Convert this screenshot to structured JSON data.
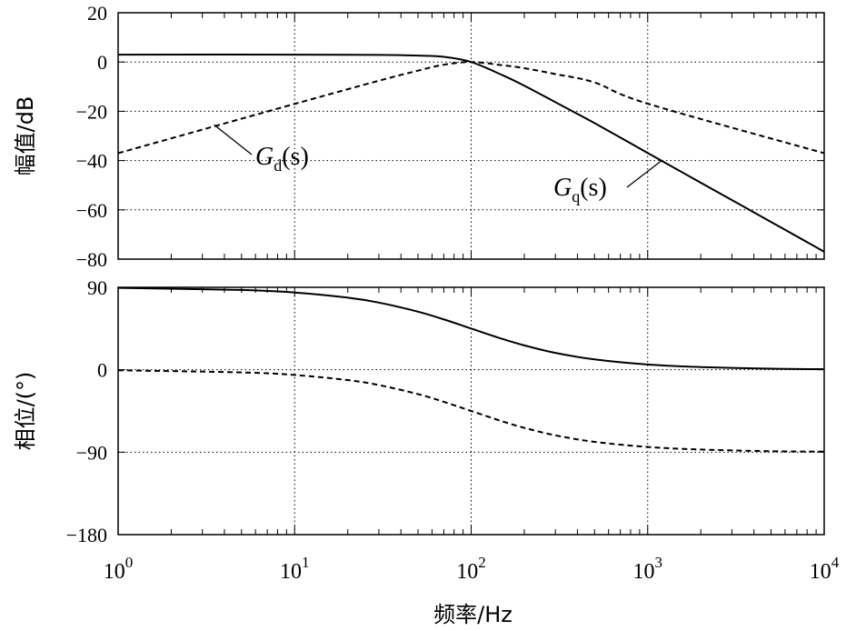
{
  "chart_data": [
    {
      "type": "line",
      "panel": "magnitude",
      "ylabel": "幅值/dB",
      "xscale": "log",
      "xlim": [
        1,
        10000
      ],
      "ylim": [
        -80,
        20
      ],
      "yticks": [
        20,
        0,
        -20,
        -40,
        -60,
        -80
      ],
      "ytick_labels": [
        "20",
        "0",
        "−20",
        "−40",
        "−60",
        "−80"
      ],
      "grid": true,
      "series": [
        {
          "name": "G_q(s)",
          "style": "solid",
          "x": [
            1,
            10,
            30,
            50,
            70,
            100,
            150,
            200,
            300,
            500,
            1000,
            2000,
            5000,
            10000
          ],
          "y": [
            3,
            3,
            2.9,
            2.6,
            2.1,
            0,
            -5.3,
            -9.6,
            -16.3,
            -24.8,
            -36.9,
            -49,
            -64.9,
            -77
          ]
        },
        {
          "name": "G_d(s)",
          "style": "dashed",
          "x": [
            1,
            10,
            30,
            50,
            70,
            100,
            150,
            200,
            300,
            500,
            1000,
            10000
          ],
          "y": [
            -37,
            -17,
            -7.6,
            -3.5,
            -1.1,
            0,
            -1.3,
            -2.5,
            -4.9,
            -8.3,
            -16.9,
            -37
          ]
        }
      ],
      "annotations": [
        {
          "main": "G",
          "sub": "d",
          "rest": "(s)",
          "target_x": 3.5,
          "target_y": -25.5
        },
        {
          "main": "G",
          "sub": "q",
          "rest": "(s)",
          "target_x": 1200,
          "target_y": -40
        }
      ]
    },
    {
      "type": "line",
      "panel": "phase",
      "xlabel": "频率/Hz",
      "ylabel": "相位/(°)",
      "xscale": "log",
      "xlim": [
        1,
        10000
      ],
      "ylim": [
        -180,
        90
      ],
      "yticks": [
        90,
        0,
        -90,
        -180
      ],
      "ytick_labels": [
        "90",
        "0",
        "−90",
        "−180"
      ],
      "xticks": [
        1,
        10,
        100,
        1000,
        10000
      ],
      "xtick_labels": [
        {
          "base": "10",
          "exp": "0"
        },
        {
          "base": "10",
          "exp": "1"
        },
        {
          "base": "10",
          "exp": "2"
        },
        {
          "base": "10",
          "exp": "3"
        },
        {
          "base": "10",
          "exp": "4"
        }
      ],
      "grid": true,
      "series": [
        {
          "name": "G_q(s)",
          "style": "solid",
          "x": [
            1,
            5,
            10,
            20,
            30,
            50,
            70,
            100,
            150,
            200,
            300,
            500,
            1000,
            2000,
            5000,
            10000
          ],
          "y": [
            89.4,
            87.1,
            84.3,
            78.7,
            73.3,
            63.4,
            55,
            45,
            33.7,
            26.6,
            18.4,
            11.3,
            5.7,
            2.9,
            1.1,
            0.6
          ]
        },
        {
          "name": "G_d(s)",
          "style": "dashed",
          "x": [
            1,
            5,
            10,
            20,
            30,
            50,
            70,
            100,
            150,
            200,
            300,
            500,
            1000,
            2000,
            5000,
            10000
          ],
          "y": [
            -0.6,
            -2.9,
            -5.7,
            -11.3,
            -16.7,
            -26.6,
            -35,
            -45,
            -56.3,
            -63.4,
            -71.6,
            -78.7,
            -84.3,
            -87.1,
            -88.9,
            -89.4
          ]
        }
      ]
    }
  ]
}
